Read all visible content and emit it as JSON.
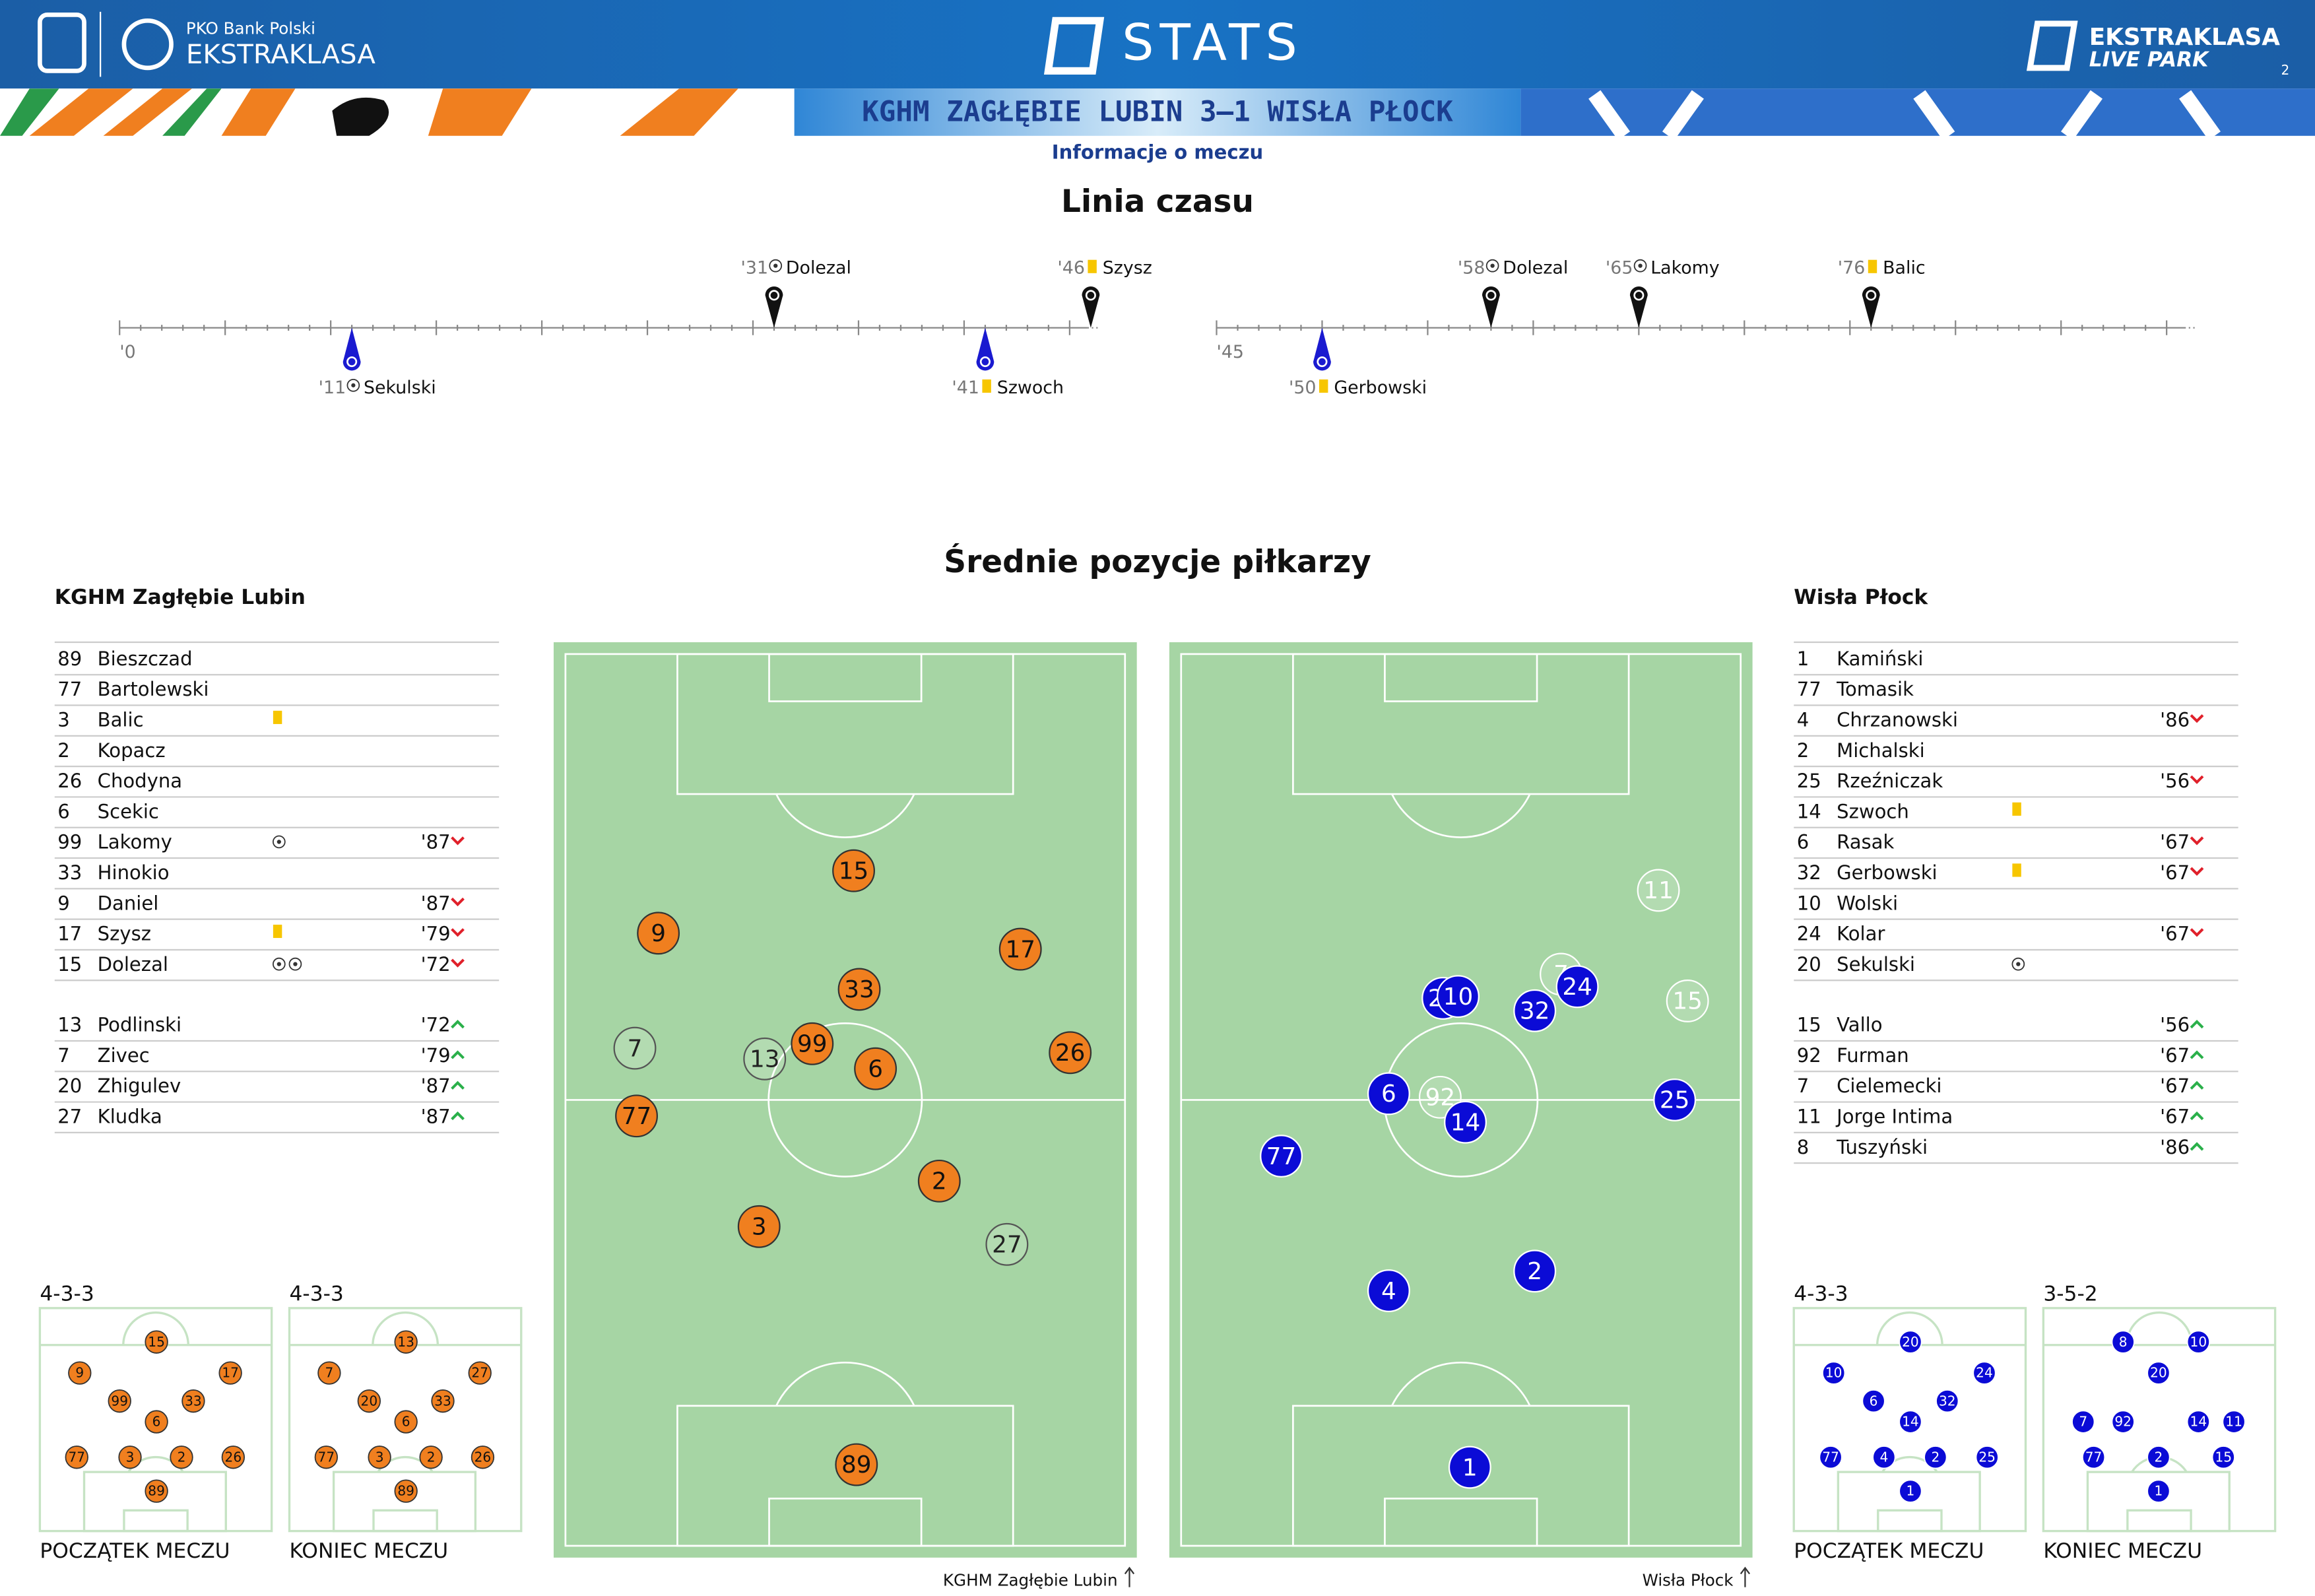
{
  "header": {
    "brand_left_top": "PKO Bank Polski",
    "brand_left": "EKSTRAKLASA",
    "stats": "STATS",
    "brand_right_top": "EKSTRAKLASA",
    "brand_right": "LIVE PARK",
    "page": "2",
    "match": "KGHM ZAGŁĘBIE LUBIN 3–1 WISŁA PŁOCK",
    "subtitle": "Informacje o meczu"
  },
  "timeline": {
    "title": "Linia czasu",
    "halves": [
      {
        "start": 0,
        "end": 45,
        "label": "'0"
      },
      {
        "start": 45,
        "end": 90,
        "label": "'45"
      }
    ],
    "events": [
      {
        "minute": 11,
        "label": "'11",
        "player": "Sekulski",
        "team": "away",
        "kind": "goal",
        "half": 0
      },
      {
        "minute": 31,
        "label": "'31",
        "player": "Dolezal",
        "team": "home",
        "kind": "goal",
        "half": 0
      },
      {
        "minute": 41,
        "label": "'41",
        "player": "Szwoch",
        "team": "away",
        "kind": "yellow",
        "half": 0
      },
      {
        "minute": 46,
        "label": "'46",
        "player": "Szysz",
        "team": "home",
        "kind": "yellow",
        "half": 0
      },
      {
        "minute": 50,
        "label": "'50",
        "player": "Gerbowski",
        "team": "away",
        "kind": "yellow",
        "half": 1
      },
      {
        "minute": 58,
        "label": "'58",
        "player": "Dolezal",
        "team": "home",
        "kind": "goal",
        "half": 1
      },
      {
        "minute": 65,
        "label": "'65",
        "player": "Lakomy",
        "team": "home",
        "kind": "goal",
        "half": 1
      },
      {
        "minute": 76,
        "label": "'76",
        "player": "Balic",
        "team": "home",
        "kind": "yellow",
        "half": 1
      }
    ]
  },
  "positions": {
    "title": "Średnie pozycje piłkarzy",
    "teams": [
      {
        "name": "KGHM Zagłębie Lubin",
        "color": "#f07f1f",
        "text_color": "#111111",
        "lineup": [
          {
            "number": "89",
            "name": "Bieszczad"
          },
          {
            "number": "77",
            "name": "Bartolewski"
          },
          {
            "number": "3",
            "name": "Balic",
            "yellow": true
          },
          {
            "number": "2",
            "name": "Kopacz"
          },
          {
            "number": "26",
            "name": "Chodyna"
          },
          {
            "number": "6",
            "name": "Scekic"
          },
          {
            "number": "99",
            "name": "Lakomy",
            "goals": 1,
            "sub": "'87",
            "dir": "out"
          },
          {
            "number": "33",
            "name": "Hinokio"
          },
          {
            "number": "9",
            "name": "Daniel",
            "sub": "'87",
            "dir": "out"
          },
          {
            "number": "17",
            "name": "Szysz",
            "yellow": true,
            "sub": "'79",
            "dir": "out"
          },
          {
            "number": "15",
            "name": "Dolezal",
            "goals": 2,
            "sub": "'72",
            "dir": "out"
          }
        ],
        "subs": [
          {
            "number": "13",
            "name": "Podlinski",
            "sub": "'72",
            "dir": "in"
          },
          {
            "number": "7",
            "name": "Zivec",
            "sub": "'79",
            "dir": "in"
          },
          {
            "number": "20",
            "name": "Zhigulev",
            "sub": "'87",
            "dir": "in"
          },
          {
            "number": "27",
            "name": "Kludka",
            "sub": "'87",
            "dir": "in"
          }
        ],
        "average_positions": [
          {
            "number": "7",
            "x": 12.4,
            "y": 44.2,
            "starter": false
          },
          {
            "number": "13",
            "x": 35.6,
            "y": 45.4,
            "starter": false
          },
          {
            "number": "27",
            "x": 78.9,
            "y": 66.2,
            "starter": false
          },
          {
            "number": "15",
            "x": 51.5,
            "y": 24.3,
            "starter": true
          },
          {
            "number": "9",
            "x": 16.6,
            "y": 31.3,
            "starter": true
          },
          {
            "number": "17",
            "x": 81.3,
            "y": 33.1,
            "starter": true
          },
          {
            "number": "33",
            "x": 52.5,
            "y": 37.6,
            "starter": true
          },
          {
            "number": "99",
            "x": 44.1,
            "y": 43.7,
            "starter": true
          },
          {
            "number": "6",
            "x": 55.4,
            "y": 46.5,
            "starter": true
          },
          {
            "number": "26",
            "x": 90.2,
            "y": 44.7,
            "starter": true
          },
          {
            "number": "77",
            "x": 12.7,
            "y": 51.8,
            "starter": true
          },
          {
            "number": "2",
            "x": 66.8,
            "y": 59.1,
            "starter": true
          },
          {
            "number": "3",
            "x": 34.6,
            "y": 64.2,
            "starter": true
          },
          {
            "number": "89",
            "x": 52.0,
            "y": 90.9,
            "starter": true
          }
        ],
        "formations": [
          {
            "label": "4-3-3",
            "caption": "POCZĄTEK MECZU",
            "players": [
              {
                "number": "15",
                "x": 50.3,
                "y": 15.2
              },
              {
                "number": "9",
                "x": 17.2,
                "y": 29.1
              },
              {
                "number": "17",
                "x": 82.2,
                "y": 29.1
              },
              {
                "number": "99",
                "x": 34.4,
                "y": 41.7
              },
              {
                "number": "33",
                "x": 66.2,
                "y": 41.7
              },
              {
                "number": "6",
                "x": 50.3,
                "y": 51.0
              },
              {
                "number": "77",
                "x": 15.9,
                "y": 66.9
              },
              {
                "number": "3",
                "x": 38.9,
                "y": 66.9
              },
              {
                "number": "2",
                "x": 61.1,
                "y": 66.9
              },
              {
                "number": "26",
                "x": 83.4,
                "y": 66.9
              },
              {
                "number": "89",
                "x": 50.3,
                "y": 82.1
              }
            ]
          },
          {
            "label": "4-3-3",
            "caption": "KONIEC MECZU",
            "players": [
              {
                "number": "13",
                "x": 50.3,
                "y": 15.2
              },
              {
                "number": "7",
                "x": 17.2,
                "y": 29.1
              },
              {
                "number": "27",
                "x": 82.2,
                "y": 29.1
              },
              {
                "number": "20",
                "x": 34.4,
                "y": 41.7
              },
              {
                "number": "33",
                "x": 66.2,
                "y": 41.7
              },
              {
                "number": "6",
                "x": 50.3,
                "y": 51.0
              },
              {
                "number": "77",
                "x": 15.9,
                "y": 66.9
              },
              {
                "number": "3",
                "x": 38.9,
                "y": 66.9
              },
              {
                "number": "2",
                "x": 61.1,
                "y": 66.9
              },
              {
                "number": "26",
                "x": 83.4,
                "y": 66.9
              },
              {
                "number": "89",
                "x": 50.3,
                "y": 82.1
              }
            ]
          }
        ]
      },
      {
        "name": "Wisła Płock",
        "color": "#0b0bd6",
        "text_color": "#ffffff",
        "lineup": [
          {
            "number": "1",
            "name": "Kamiński"
          },
          {
            "number": "77",
            "name": "Tomasik"
          },
          {
            "number": "4",
            "name": "Chrzanowski",
            "sub": "'86",
            "dir": "out"
          },
          {
            "number": "2",
            "name": "Michalski"
          },
          {
            "number": "25",
            "name": "Rzeźniczak",
            "sub": "'56",
            "dir": "out"
          },
          {
            "number": "14",
            "name": "Szwoch",
            "yellow": true
          },
          {
            "number": "6",
            "name": "Rasak",
            "sub": "'67",
            "dir": "out"
          },
          {
            "number": "32",
            "name": "Gerbowski",
            "yellow": true,
            "sub": "'67",
            "dir": "out"
          },
          {
            "number": "10",
            "name": "Wolski"
          },
          {
            "number": "24",
            "name": "Kolar",
            "sub": "'67",
            "dir": "out"
          },
          {
            "number": "20",
            "name": "Sekulski",
            "goals": 1
          }
        ],
        "subs": [
          {
            "number": "15",
            "name": "Vallo",
            "sub": "'56",
            "dir": "in"
          },
          {
            "number": "92",
            "name": "Furman",
            "sub": "'67",
            "dir": "in"
          },
          {
            "number": "7",
            "name": "Cielemecki",
            "sub": "'67",
            "dir": "in"
          },
          {
            "number": "11",
            "name": "Jorge Intima",
            "sub": "'67",
            "dir": "in"
          },
          {
            "number": "8",
            "name": "Tuszyński",
            "sub": "'86",
            "dir": "in"
          }
        ],
        "average_positions": [
          {
            "number": "11",
            "x": 85.3,
            "y": 26.5,
            "starter": false
          },
          {
            "number": "7",
            "x": 67.9,
            "y": 35.9,
            "starter": false
          },
          {
            "number": "15",
            "x": 90.5,
            "y": 38.9,
            "starter": false
          },
          {
            "number": "92",
            "x": 46.3,
            "y": 49.7,
            "starter": false
          },
          {
            "number": "20",
            "x": 46.8,
            "y": 38.6,
            "starter": true
          },
          {
            "number": "10",
            "x": 49.5,
            "y": 38.4,
            "starter": true
          },
          {
            "number": "24",
            "x": 70.8,
            "y": 37.3,
            "starter": true
          },
          {
            "number": "32",
            "x": 63.2,
            "y": 40.0,
            "starter": true
          },
          {
            "number": "6",
            "x": 37.1,
            "y": 49.3,
            "starter": true
          },
          {
            "number": "14",
            "x": 50.8,
            "y": 52.5,
            "starter": true
          },
          {
            "number": "25",
            "x": 88.2,
            "y": 50.0,
            "starter": true
          },
          {
            "number": "77",
            "x": 17.9,
            "y": 56.3,
            "starter": true
          },
          {
            "number": "2",
            "x": 63.2,
            "y": 69.2,
            "starter": true
          },
          {
            "number": "4",
            "x": 37.1,
            "y": 71.4,
            "starter": true
          },
          {
            "number": "1",
            "x": 51.6,
            "y": 91.2,
            "starter": true
          }
        ],
        "formations": [
          {
            "label": "4-3-3",
            "caption": "POCZĄTEK MECZU",
            "players": [
              {
                "number": "20",
                "x": 50.3,
                "y": 15.2
              },
              {
                "number": "10",
                "x": 17.2,
                "y": 29.1
              },
              {
                "number": "24",
                "x": 82.2,
                "y": 29.1
              },
              {
                "number": "6",
                "x": 34.4,
                "y": 41.7
              },
              {
                "number": "32",
                "x": 66.2,
                "y": 41.7
              },
              {
                "number": "14",
                "x": 50.3,
                "y": 51.0
              },
              {
                "number": "77",
                "x": 15.9,
                "y": 66.9
              },
              {
                "number": "4",
                "x": 38.9,
                "y": 66.9
              },
              {
                "number": "2",
                "x": 61.1,
                "y": 66.9
              },
              {
                "number": "25",
                "x": 83.4,
                "y": 66.9
              },
              {
                "number": "1",
                "x": 50.3,
                "y": 82.1
              }
            ]
          },
          {
            "label": "3-5-2",
            "caption": "KONIEC MECZU",
            "players": [
              {
                "number": "8",
                "x": 34.4,
                "y": 15.2
              },
              {
                "number": "10",
                "x": 66.9,
                "y": 15.2
              },
              {
                "number": "20",
                "x": 49.7,
                "y": 29.1
              },
              {
                "number": "7",
                "x": 17.2,
                "y": 51.0
              },
              {
                "number": "92",
                "x": 34.4,
                "y": 51.0
              },
              {
                "number": "14",
                "x": 66.9,
                "y": 51.0
              },
              {
                "number": "11",
                "x": 82.2,
                "y": 51.0
              },
              {
                "number": "77",
                "x": 21.7,
                "y": 66.9
              },
              {
                "number": "2",
                "x": 49.7,
                "y": 66.9
              },
              {
                "number": "15",
                "x": 77.7,
                "y": 66.9
              },
              {
                "number": "1",
                "x": 49.7,
                "y": 82.1
              }
            ]
          }
        ]
      }
    ]
  }
}
